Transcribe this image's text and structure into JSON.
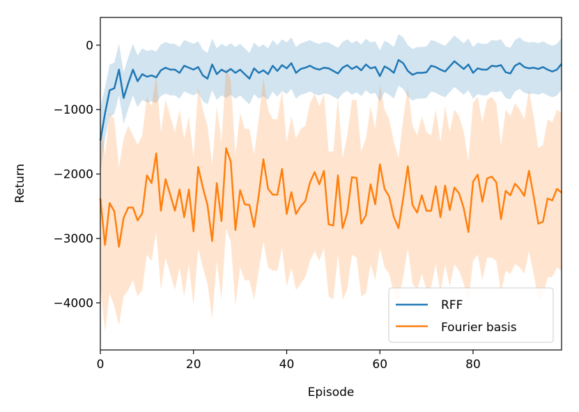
{
  "chart_data": {
    "type": "line",
    "xlabel": "Episode",
    "ylabel": "Return",
    "xlim": [
      0,
      99
    ],
    "ylim": [
      -4730,
      430
    ],
    "x_ticks": [
      0,
      20,
      40,
      60,
      80
    ],
    "x_tick_labels": [
      "0",
      "20",
      "40",
      "60",
      "80"
    ],
    "y_ticks": [
      0,
      -1000,
      -2000,
      -3000,
      -4000
    ],
    "y_tick_labels": [
      "0",
      "−1000",
      "−2000",
      "−3000",
      "−4000"
    ],
    "legend_placement": "lower-right",
    "grid": false,
    "x": [
      0,
      1,
      2,
      3,
      4,
      5,
      6,
      7,
      8,
      9,
      10,
      11,
      12,
      13,
      14,
      15,
      16,
      17,
      18,
      19,
      20,
      21,
      22,
      23,
      24,
      25,
      26,
      27,
      28,
      29,
      30,
      31,
      32,
      33,
      34,
      35,
      36,
      37,
      38,
      39,
      40,
      41,
      42,
      43,
      44,
      45,
      46,
      47,
      48,
      49,
      50,
      51,
      52,
      53,
      54,
      55,
      56,
      57,
      58,
      59,
      60,
      61,
      62,
      63,
      64,
      65,
      66,
      67,
      68,
      69,
      70,
      71,
      72,
      73,
      74,
      75,
      76,
      77,
      78,
      79,
      80,
      81,
      82,
      83,
      84,
      85,
      86,
      87,
      88,
      89,
      90,
      91,
      92,
      93,
      94,
      95,
      96,
      97,
      98,
      99
    ],
    "series": [
      {
        "name": "RFF",
        "color": "#1f77b4",
        "band_color": "#1f77b4",
        "values": [
          -1480,
          -1060,
          -700,
          -670,
          -380,
          -820,
          -590,
          -380,
          -560,
          -450,
          -490,
          -470,
          -500,
          -390,
          -350,
          -380,
          -380,
          -430,
          -320,
          -350,
          -380,
          -340,
          -470,
          -520,
          -300,
          -450,
          -380,
          -420,
          -370,
          -430,
          -380,
          -450,
          -520,
          -360,
          -430,
          -390,
          -450,
          -320,
          -400,
          -310,
          -360,
          -280,
          -430,
          -370,
          -350,
          -320,
          -360,
          -380,
          -350,
          -360,
          -400,
          -440,
          -350,
          -310,
          -370,
          -330,
          -390,
          -300,
          -360,
          -340,
          -480,
          -330,
          -370,
          -430,
          -230,
          -280,
          -400,
          -460,
          -430,
          -430,
          -420,
          -320,
          -340,
          -380,
          -410,
          -330,
          -250,
          -310,
          -370,
          -300,
          -430,
          -360,
          -380,
          -380,
          -320,
          -330,
          -310,
          -420,
          -440,
          -320,
          -280,
          -340,
          -360,
          -350,
          -370,
          -340,
          -380,
          -410,
          -380,
          -290
        ],
        "lower": [
          -2000,
          -1460,
          -1100,
          -1070,
          -780,
          -1220,
          -990,
          -780,
          -960,
          -850,
          -890,
          -870,
          -900,
          -790,
          -750,
          -780,
          -780,
          -830,
          -720,
          -750,
          -780,
          -740,
          -870,
          -920,
          -700,
          -850,
          -780,
          -820,
          -770,
          -830,
          -780,
          -850,
          -920,
          -760,
          -830,
          -790,
          -850,
          -720,
          -800,
          -710,
          -760,
          -680,
          -830,
          -770,
          -750,
          -720,
          -760,
          -780,
          -750,
          -760,
          -800,
          -840,
          -750,
          -710,
          -770,
          -730,
          -790,
          -700,
          -760,
          -740,
          -880,
          -730,
          -770,
          -830,
          -630,
          -680,
          -800,
          -860,
          -830,
          -830,
          -820,
          -720,
          -740,
          -780,
          -810,
          -730,
          -650,
          -710,
          -770,
          -700,
          -830,
          -760,
          -780,
          -780,
          -720,
          -730,
          -710,
          -820,
          -840,
          -720,
          -680,
          -740,
          -760,
          -750,
          -770,
          -740,
          -780,
          -810,
          -780,
          -690
        ],
        "upper": [
          -960,
          -660,
          -300,
          -270,
          20,
          -420,
          -190,
          20,
          -160,
          -50,
          -90,
          -70,
          -100,
          10,
          50,
          20,
          20,
          -30,
          80,
          50,
          20,
          60,
          -70,
          -120,
          100,
          -50,
          20,
          -20,
          30,
          -30,
          20,
          -50,
          -120,
          40,
          -30,
          10,
          -50,
          80,
          0,
          90,
          40,
          120,
          -30,
          30,
          50,
          80,
          40,
          20,
          50,
          40,
          0,
          -40,
          50,
          90,
          30,
          70,
          10,
          100,
          40,
          60,
          -80,
          70,
          30,
          -30,
          170,
          120,
          0,
          -60,
          -30,
          -30,
          -20,
          80,
          60,
          20,
          -10,
          70,
          150,
          90,
          30,
          100,
          -30,
          40,
          20,
          20,
          80,
          70,
          90,
          -20,
          -40,
          80,
          120,
          60,
          40,
          50,
          30,
          60,
          20,
          -10,
          20,
          110
        ]
      },
      {
        "name": "Fourier basis",
        "color": "#ff7f0e",
        "band_color": "#ff7f0e",
        "values": [
          -2380,
          -3100,
          -2450,
          -2580,
          -3130,
          -2680,
          -2520,
          -2520,
          -2720,
          -2610,
          -2020,
          -2140,
          -1680,
          -2570,
          -2080,
          -2320,
          -2570,
          -2240,
          -2670,
          -2240,
          -2890,
          -1890,
          -2210,
          -2480,
          -3040,
          -2140,
          -2730,
          -1600,
          -1810,
          -2870,
          -2250,
          -2470,
          -2480,
          -2820,
          -2330,
          -1770,
          -2230,
          -2320,
          -2320,
          -1920,
          -2620,
          -2280,
          -2620,
          -2500,
          -2420,
          -2130,
          -1970,
          -2160,
          -1950,
          -2780,
          -2800,
          -2020,
          -2840,
          -2600,
          -2050,
          -2060,
          -2770,
          -2640,
          -2160,
          -2470,
          -1850,
          -2230,
          -2350,
          -2670,
          -2840,
          -2380,
          -1880,
          -2480,
          -2600,
          -2330,
          -2570,
          -2570,
          -2190,
          -2670,
          -2180,
          -2560,
          -2210,
          -2300,
          -2530,
          -2900,
          -2120,
          -2010,
          -2430,
          -2070,
          -2040,
          -2130,
          -2700,
          -2260,
          -2330,
          -2150,
          -2230,
          -2340,
          -1950,
          -2340,
          -2770,
          -2740,
          -2380,
          -2410,
          -2230,
          -2290
        ],
        "lower": [
          -3700,
          -4450,
          -3850,
          -4050,
          -4350,
          -3900,
          -3800,
          -3650,
          -3900,
          -3800,
          -3250,
          -3350,
          -2900,
          -3800,
          -3300,
          -3550,
          -3800,
          -3450,
          -3900,
          -3400,
          -4050,
          -3150,
          -3450,
          -3700,
          -4250,
          -3350,
          -3950,
          -2850,
          -3050,
          -4050,
          -3450,
          -3650,
          -3650,
          -3950,
          -3500,
          -3050,
          -3450,
          -3500,
          -3500,
          -3150,
          -3750,
          -3450,
          -3800,
          -3700,
          -3600,
          -3350,
          -3200,
          -3350,
          -3150,
          -3900,
          -3950,
          -3250,
          -3950,
          -3800,
          -3250,
          -3300,
          -3900,
          -3850,
          -3400,
          -3650,
          -3150,
          -3450,
          -3550,
          -3850,
          -3950,
          -3600,
          -3150,
          -3700,
          -3800,
          -3550,
          -3800,
          -3750,
          -3400,
          -3850,
          -3400,
          -3750,
          -3400,
          -3500,
          -3700,
          -4000,
          -3350,
          -3250,
          -3650,
          -3300,
          -3300,
          -3350,
          -3850,
          -3500,
          -3550,
          -3400,
          -3450,
          -3550,
          -3200,
          -3550,
          -3950,
          -3900,
          -3600,
          -3600,
          -3450,
          -3500
        ],
        "upper": [
          -1100,
          -1700,
          -1050,
          -1150,
          -1900,
          -1450,
          -1250,
          -1400,
          -1550,
          -1400,
          -800,
          -950,
          -450,
          -1350,
          -850,
          -1100,
          -1350,
          -1000,
          -1450,
          -1100,
          -1750,
          -650,
          -1000,
          -1250,
          -1850,
          -950,
          -1500,
          -350,
          -550,
          -1700,
          -1050,
          -1300,
          -1300,
          -1700,
          -1150,
          -500,
          -1000,
          -1150,
          -1150,
          -700,
          -1500,
          -1100,
          -1450,
          -1300,
          -1250,
          -900,
          -750,
          -950,
          -750,
          -1650,
          -1650,
          -800,
          -1750,
          -1400,
          -850,
          -850,
          -1650,
          -1450,
          -950,
          -1300,
          -600,
          -1000,
          -1150,
          -1500,
          -1750,
          -1150,
          -650,
          -1250,
          -1400,
          -1100,
          -1350,
          -1400,
          -1000,
          -1500,
          -950,
          -1350,
          -1000,
          -1100,
          -1350,
          -1800,
          -900,
          -800,
          -1200,
          -850,
          -800,
          -900,
          -1550,
          -1000,
          -1100,
          -900,
          -1000,
          -1150,
          -700,
          -1100,
          -1600,
          -1550,
          -1150,
          -1200,
          -1000,
          -1050
        ]
      }
    ]
  }
}
